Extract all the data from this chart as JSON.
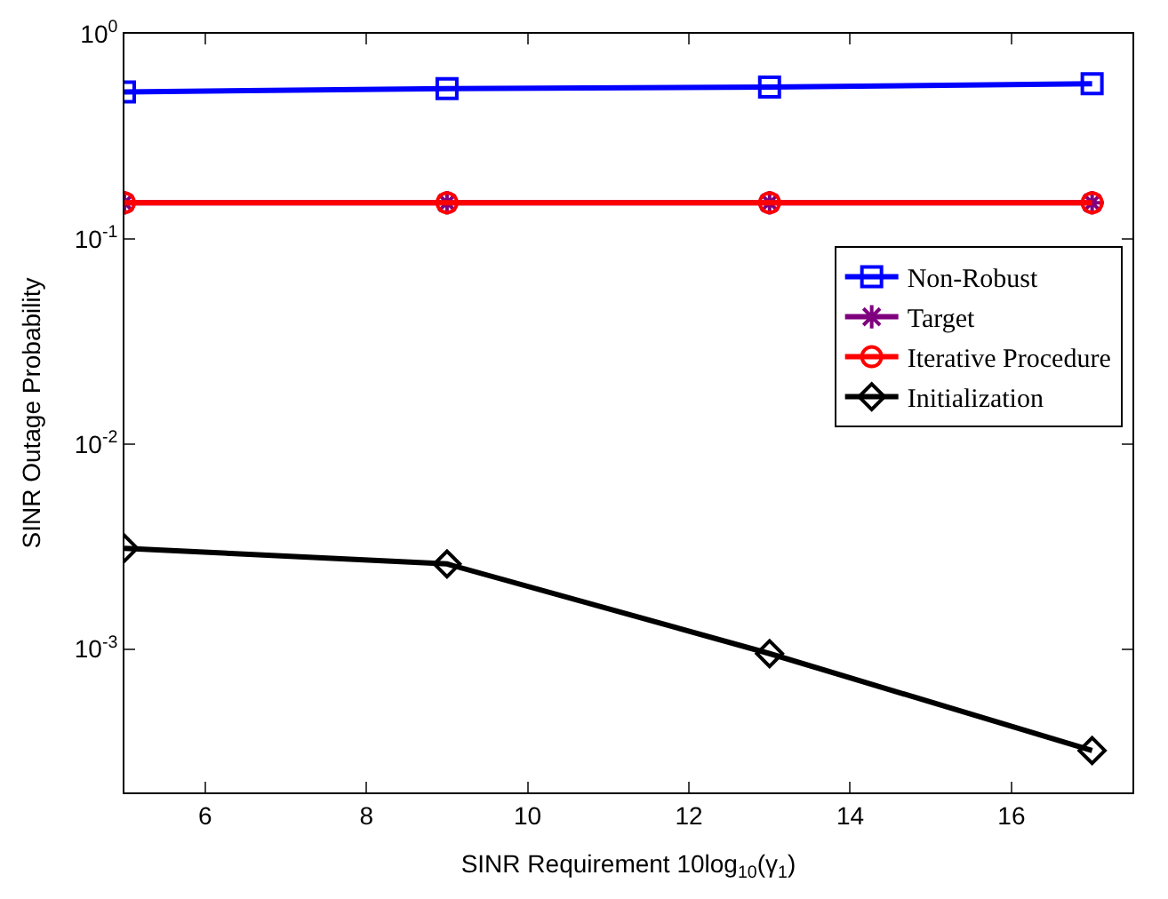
{
  "chart_data": {
    "type": "line",
    "xlabel": "SINR Requirement 10log$_{10}$(γ$_{1}$)",
    "ylabel": "SINR Outage Probability",
    "x": [
      5,
      9,
      13,
      17
    ],
    "xlim": [
      5,
      17.5
    ],
    "xticks": [
      6,
      8,
      10,
      12,
      14,
      16
    ],
    "log": "y",
    "ylim": [
      0.0002,
      1
    ],
    "yticks": [
      {
        "value": 1,
        "label": "10$^{0}$"
      },
      {
        "value": 0.1,
        "label": "10$^{-1}$"
      },
      {
        "value": 0.01,
        "label": "10$^{-2}$"
      },
      {
        "value": 0.001,
        "label": "10$^{-3}$"
      }
    ],
    "legend": "right",
    "line_style": "solid",
    "series": [
      {
        "name": "Non-Robust",
        "color": "#0000ff",
        "marker": "square",
        "values": [
          0.52,
          0.54,
          0.55,
          0.57
        ]
      },
      {
        "name": "Target",
        "color": "#7f007f",
        "marker": "cross",
        "values": [
          0.15,
          0.15,
          0.15,
          0.15
        ]
      },
      {
        "name": "Iterative Procedure",
        "color": "#ff0000",
        "marker": "circle",
        "values": [
          0.15,
          0.15,
          0.15,
          0.15
        ]
      },
      {
        "name": "Initialization",
        "color": "#000000",
        "marker": "diamond",
        "values": [
          0.0031,
          0.0026,
          0.00095,
          0.00032
        ]
      }
    ]
  }
}
